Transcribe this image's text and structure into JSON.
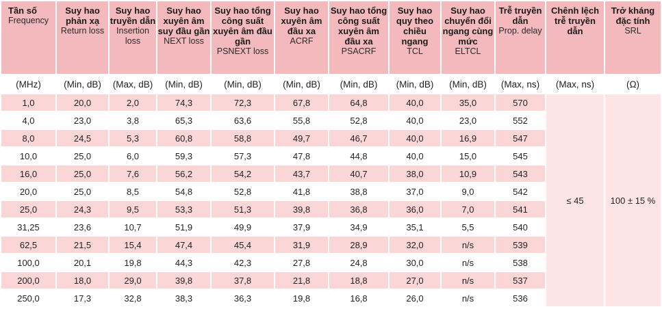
{
  "headers": [
    {
      "vn": "Tần số",
      "en": "Frequency"
    },
    {
      "vn": "Suy hao phản xạ",
      "en": "Return loss"
    },
    {
      "vn": "Suy hao truyền dẫn",
      "en": "Insertion loss"
    },
    {
      "vn": "Suy hao xuyên âm suy đầu gần",
      "en": "NEXT loss"
    },
    {
      "vn": "Suy hao tổng công suất xuyên âm đầu gần",
      "en": "PSNEXT loss"
    },
    {
      "vn": "Suy hao xuyên âm đầu xa",
      "en": "ACRF"
    },
    {
      "vn": "Suy hao tổng công suất xuyên âm đầu xa",
      "en": "PSACRF"
    },
    {
      "vn": "Suy hao quy theo chiều ngang",
      "en": "TCL"
    },
    {
      "vn": "Suy hao chuyển đổi ngang cùng mức",
      "en": "ELTCL"
    },
    {
      "vn": "Trễ truyền dẫn",
      "en": "Prop. delay"
    },
    {
      "vn": "Chênh lệch trễ truyền dẫn",
      "en": ""
    },
    {
      "vn": "Trở kháng đặc tính",
      "en": "SRL"
    }
  ],
  "units": [
    "(MHz)",
    "(Min, dB)",
    "(Max, dB)",
    "(Min, dB)",
    "(Min, dB)",
    "(Min, dB)",
    "(Min, dB)",
    "(Min, dB)",
    "(Min, dB)",
    "(Max, ns)",
    "(Max, ns)",
    "(Ω)"
  ],
  "rows": [
    [
      "1,0",
      "20,0",
      "2,0",
      "74,3",
      "72,3",
      "67,8",
      "64,8",
      "40,0",
      "35,0",
      "570"
    ],
    [
      "4,0",
      "23,0",
      "3,8",
      "65,3",
      "63,6",
      "55,8",
      "52,8",
      "40,0",
      "23,0",
      "552"
    ],
    [
      "8,0",
      "24,5",
      "5,3",
      "60,8",
      "58,8",
      "49,7",
      "46,7",
      "40,0",
      "16,9",
      "547"
    ],
    [
      "10,0",
      "25,0",
      "6,0",
      "59,3",
      "57,3",
      "47,8",
      "44,8",
      "40,0",
      "15,0",
      "545"
    ],
    [
      "16,0",
      "25,0",
      "7,6",
      "56,2",
      "54,2",
      "43,7",
      "40,7",
      "38,0",
      "10,9",
      "543"
    ],
    [
      "20,0",
      "25,0",
      "8,5",
      "54,8",
      "52,8",
      "41,8",
      "38,8",
      "37,0",
      "9,0",
      "542"
    ],
    [
      "25,0",
      "24,3",
      "9,5",
      "53,3",
      "51,3",
      "39,8",
      "36,8",
      "36,0",
      "7,0",
      "541"
    ],
    [
      "31,25",
      "23,6",
      "10,7",
      "51,9",
      "49,9",
      "37,9",
      "34,9",
      "35,1",
      "5,5",
      "540"
    ],
    [
      "62,5",
      "21,5",
      "15,4",
      "47,4",
      "45,4",
      "31,9",
      "28,9",
      "32,0",
      "n/s",
      "539"
    ],
    [
      "100,0",
      "20,1",
      "19,8",
      "44,3",
      "42,3",
      "27,8",
      "24,8",
      "30,0",
      "n/s",
      "538"
    ],
    [
      "200,0",
      "18,0",
      "29,0",
      "39,8",
      "37,8",
      "21,8",
      "18,8",
      "27,0",
      "n/s",
      "537"
    ],
    [
      "250,0",
      "17,3",
      "32,8",
      "38,3",
      "36,3",
      "19,8",
      "16,8",
      "26,0",
      "n/s",
      "536"
    ]
  ],
  "merged": {
    "delay_skew": "≤ 45",
    "impedance": "100 ± 15 %"
  },
  "colors": {
    "header_bg": "#f3b9bc",
    "row_tint": "#fbd6d7",
    "merged_bg": "#fde5e6"
  }
}
